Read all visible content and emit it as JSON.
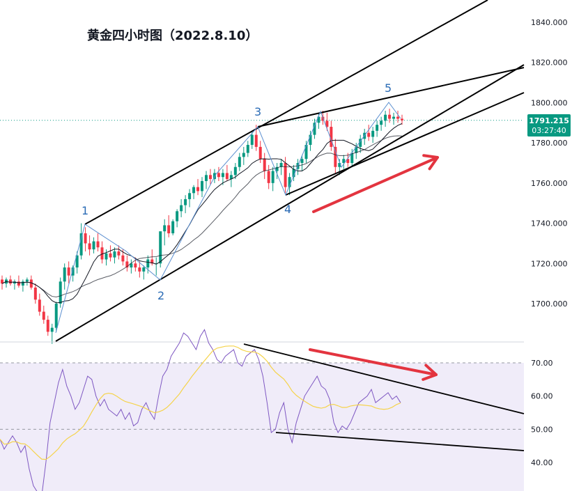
{
  "chart_data": {
    "type": "candlestick",
    "title": "黄金四小时图（2022.8.10）",
    "price_panel": {
      "ylim": [
        1680,
        1842
      ],
      "y_ticks": [
        "1700.000",
        "1720.000",
        "1740.000",
        "1760.000",
        "1780.000",
        "1800.000",
        "1820.000",
        "1840.000"
      ],
      "y_tick_values": [
        1700,
        1720,
        1740,
        1760,
        1780,
        1800,
        1820,
        1840
      ],
      "current_price": "1791.215",
      "current_price_value": 1791.215,
      "countdown": "03:27:40",
      "bar_count": 97,
      "candles_ohlc": [
        [
          1712,
          1714,
          1707,
          1710
        ],
        [
          1710,
          1713,
          1708,
          1712
        ],
        [
          1712,
          1714,
          1709,
          1710
        ],
        [
          1710,
          1712,
          1707,
          1711
        ],
        [
          1711,
          1714,
          1708,
          1709
        ],
        [
          1709,
          1712,
          1706,
          1711
        ],
        [
          1711,
          1713,
          1709,
          1712
        ],
        [
          1712,
          1714,
          1707,
          1708
        ],
        [
          1708,
          1710,
          1700,
          1702
        ],
        [
          1702,
          1705,
          1694,
          1696
        ],
        [
          1696,
          1699,
          1690,
          1692
        ],
        [
          1692,
          1694,
          1684,
          1686
        ],
        [
          1686,
          1690,
          1680,
          1688
        ],
        [
          1688,
          1701,
          1686,
          1700
        ],
        [
          1700,
          1713,
          1698,
          1711
        ],
        [
          1711,
          1720,
          1707,
          1718
        ],
        [
          1718,
          1721,
          1710,
          1714
        ],
        [
          1714,
          1719,
          1711,
          1718
        ],
        [
          1718,
          1726,
          1715,
          1724
        ],
        [
          1724,
          1740,
          1722,
          1735
        ],
        [
          1735,
          1738,
          1726,
          1730
        ],
        [
          1730,
          1734,
          1724,
          1727
        ],
        [
          1727,
          1733,
          1725,
          1731
        ],
        [
          1731,
          1735,
          1726,
          1728
        ],
        [
          1728,
          1731,
          1720,
          1722
        ],
        [
          1722,
          1727,
          1719,
          1725
        ],
        [
          1725,
          1729,
          1721,
          1723
        ],
        [
          1723,
          1728,
          1720,
          1726
        ],
        [
          1726,
          1729,
          1722,
          1724
        ],
        [
          1724,
          1727,
          1719,
          1721
        ],
        [
          1721,
          1724,
          1716,
          1718
        ],
        [
          1718,
          1722,
          1715,
          1720
        ],
        [
          1720,
          1723,
          1716,
          1718
        ],
        [
          1718,
          1721,
          1713,
          1716
        ],
        [
          1716,
          1719,
          1712,
          1718
        ],
        [
          1718,
          1724,
          1715,
          1722
        ],
        [
          1722,
          1727,
          1719,
          1720
        ],
        [
          1720,
          1723,
          1714,
          1720
        ],
        [
          1720,
          1730,
          1718,
          1736
        ],
        [
          1736,
          1742,
          1729,
          1739
        ],
        [
          1739,
          1744,
          1733,
          1735
        ],
        [
          1735,
          1742,
          1734,
          1741
        ],
        [
          1741,
          1747,
          1738,
          1746
        ],
        [
          1746,
          1752,
          1743,
          1749
        ],
        [
          1749,
          1754,
          1745,
          1752
        ],
        [
          1752,
          1757,
          1748,
          1755
        ],
        [
          1755,
          1759,
          1752,
          1758
        ],
        [
          1758,
          1762,
          1754,
          1756
        ],
        [
          1756,
          1763,
          1753,
          1761
        ],
        [
          1761,
          1766,
          1757,
          1764
        ],
        [
          1764,
          1767,
          1759,
          1762
        ],
        [
          1762,
          1767,
          1760,
          1765
        ],
        [
          1765,
          1768,
          1761,
          1763
        ],
        [
          1763,
          1767,
          1759,
          1765
        ],
        [
          1765,
          1769,
          1761,
          1762
        ],
        [
          1762,
          1766,
          1758,
          1764
        ],
        [
          1764,
          1770,
          1762,
          1768
        ],
        [
          1768,
          1775,
          1766,
          1773
        ],
        [
          1773,
          1778,
          1769,
          1775
        ],
        [
          1775,
          1781,
          1773,
          1779
        ],
        [
          1779,
          1786,
          1777,
          1784
        ],
        [
          1784,
          1789,
          1776,
          1778
        ],
        [
          1778,
          1781,
          1770,
          1772
        ],
        [
          1772,
          1775,
          1762,
          1766
        ],
        [
          1766,
          1769,
          1757,
          1760
        ],
        [
          1760,
          1768,
          1756,
          1766
        ],
        [
          1766,
          1770,
          1762,
          1768
        ],
        [
          1768,
          1772,
          1764,
          1770
        ],
        [
          1770,
          1773,
          1755,
          1758
        ],
        [
          1758,
          1765,
          1754,
          1763
        ],
        [
          1763,
          1769,
          1761,
          1767
        ],
        [
          1767,
          1772,
          1764,
          1770
        ],
        [
          1770,
          1774,
          1766,
          1772
        ],
        [
          1772,
          1781,
          1770,
          1779
        ],
        [
          1779,
          1786,
          1776,
          1784
        ],
        [
          1784,
          1792,
          1782,
          1790
        ],
        [
          1790,
          1795,
          1787,
          1793
        ],
        [
          1793,
          1796,
          1789,
          1791
        ],
        [
          1791,
          1795,
          1786,
          1788
        ],
        [
          1788,
          1791,
          1776,
          1778
        ],
        [
          1778,
          1782,
          1765,
          1768
        ],
        [
          1768,
          1772,
          1764,
          1770
        ],
        [
          1770,
          1774,
          1767,
          1772
        ],
        [
          1772,
          1775,
          1768,
          1770
        ],
        [
          1770,
          1777,
          1768,
          1775
        ],
        [
          1775,
          1780,
          1772,
          1778
        ],
        [
          1778,
          1784,
          1775,
          1782
        ],
        [
          1782,
          1787,
          1779,
          1785
        ],
        [
          1785,
          1789,
          1781,
          1783
        ],
        [
          1783,
          1788,
          1780,
          1786
        ],
        [
          1786,
          1791,
          1783,
          1789
        ],
        [
          1789,
          1793,
          1786,
          1791
        ],
        [
          1791,
          1796,
          1788,
          1794
        ],
        [
          1794,
          1797,
          1790,
          1792
        ],
        [
          1792,
          1795,
          1789,
          1793
        ],
        [
          1793,
          1796,
          1790,
          1792
        ],
        [
          1792,
          1794,
          1789,
          1791.215
        ]
      ],
      "ma_fast_period": 10,
      "ma_slow_period": 20,
      "elliott_wave_labels": [
        {
          "label": "1",
          "bar": 24,
          "price": 1741
        },
        {
          "label": "2",
          "bar": 46,
          "price": 1712
        },
        {
          "label": "3",
          "bar": 73,
          "price": 1789
        },
        {
          "label": "4",
          "bar": 83,
          "price": 1754
        },
        {
          "label": "5",
          "bar": 113,
          "price": 1801
        }
      ]
    },
    "rsi_panel": {
      "ylim": [
        28,
        80
      ],
      "y_ticks": [
        "40.00",
        "50.00",
        "60.00",
        "70.00"
      ],
      "y_tick_values": [
        40,
        50,
        60,
        70
      ],
      "band_upper": 70,
      "band_lower": 30,
      "mid_line": 50,
      "rsi_values": [
        47,
        44,
        46,
        48,
        46,
        43,
        45,
        38,
        33,
        31,
        30,
        40,
        52,
        58,
        64,
        68,
        63,
        60,
        56,
        58,
        62,
        66,
        65,
        60,
        57,
        59,
        56,
        55,
        54,
        56,
        53,
        55,
        51,
        52,
        56,
        58,
        55,
        53,
        60,
        66,
        68,
        72,
        74,
        76,
        79,
        78,
        76,
        74,
        78,
        80,
        76,
        74,
        71,
        70,
        72,
        73,
        74,
        70,
        69,
        72,
        73,
        74,
        71,
        66,
        58,
        49,
        50,
        55,
        58,
        50,
        46,
        52,
        56,
        60,
        62,
        64,
        66,
        63,
        62,
        59,
        52,
        49,
        51,
        50,
        52,
        55,
        58,
        59,
        60,
        62,
        58,
        59,
        60,
        61,
        59,
        60,
        58
      ],
      "rsi_ma_period": 14
    },
    "annotations": [
      {
        "type": "up-arrow",
        "color": "#e3343f"
      },
      {
        "type": "down-arrow",
        "color": "#e3343f"
      }
    ],
    "colors": {
      "up": "#089981",
      "down": "#f23645",
      "channel": "#000000",
      "wave_line": "#5b8fd0",
      "arrow": "#e3343f",
      "rsi_line": "#7e57c2",
      "rsi_ma": "#f5d34a",
      "rsi_band": "#f0ecf9",
      "price_tag": "#089981",
      "wave_label": "#2a6bb5"
    }
  }
}
